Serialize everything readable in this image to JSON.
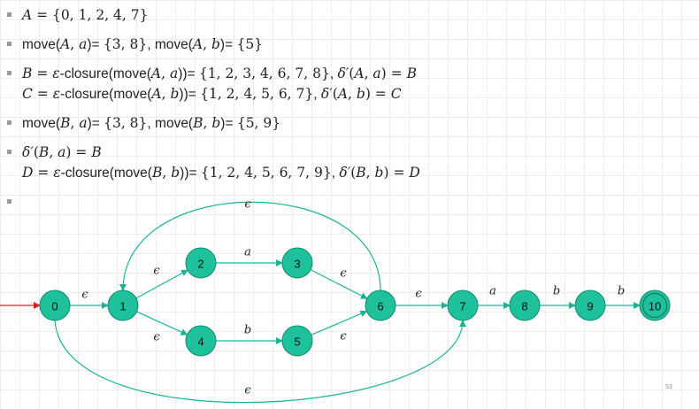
{
  "bullets": [
    {
      "lines": [
        [
          {
            "t": "m",
            "v": "A"
          },
          {
            "t": "n",
            "v": " = {0, 1, 2, 4, 7}"
          }
        ]
      ]
    },
    {
      "lines": [
        [
          {
            "t": "s",
            "v": "move("
          },
          {
            "t": "m",
            "v": "A"
          },
          {
            "t": "n",
            "v": ", "
          },
          {
            "t": "m",
            "v": "a"
          },
          {
            "t": "s",
            "v": ")= "
          },
          {
            "t": "n",
            "v": "{3, 8}"
          },
          {
            "t": "s",
            "v": ", move("
          },
          {
            "t": "m",
            "v": "A"
          },
          {
            "t": "n",
            "v": ", "
          },
          {
            "t": "m",
            "v": "b"
          },
          {
            "t": "s",
            "v": ")= "
          },
          {
            "t": "n",
            "v": "{5}"
          }
        ]
      ]
    },
    {
      "lines": [
        [
          {
            "t": "m",
            "v": "B"
          },
          {
            "t": "n",
            "v": " = "
          },
          {
            "t": "m",
            "v": "ε"
          },
          {
            "t": "s",
            "v": "-closure(move("
          },
          {
            "t": "m",
            "v": "A"
          },
          {
            "t": "n",
            "v": ", "
          },
          {
            "t": "m",
            "v": "a"
          },
          {
            "t": "s",
            "v": "))= "
          },
          {
            "t": "n",
            "v": "{1, 2, 3, 4, 6, 7, 8}"
          },
          {
            "t": "s",
            "v": ", "
          },
          {
            "t": "m",
            "v": "δ′"
          },
          {
            "t": "n",
            "v": "("
          },
          {
            "t": "m",
            "v": "A"
          },
          {
            "t": "n",
            "v": ", "
          },
          {
            "t": "m",
            "v": "a"
          },
          {
            "t": "n",
            "v": ") = "
          },
          {
            "t": "m",
            "v": "B"
          }
        ],
        [
          {
            "t": "m",
            "v": "C"
          },
          {
            "t": "n",
            "v": " = "
          },
          {
            "t": "m",
            "v": "ε"
          },
          {
            "t": "s",
            "v": "-closure(move("
          },
          {
            "t": "m",
            "v": "A"
          },
          {
            "t": "n",
            "v": ", "
          },
          {
            "t": "m",
            "v": "b"
          },
          {
            "t": "s",
            "v": "))= "
          },
          {
            "t": "n",
            "v": "{1, 2, 4, 5, 6, 7}"
          },
          {
            "t": "s",
            "v": ", "
          },
          {
            "t": "m",
            "v": "δ′"
          },
          {
            "t": "n",
            "v": "("
          },
          {
            "t": "m",
            "v": "A"
          },
          {
            "t": "n",
            "v": ", "
          },
          {
            "t": "m",
            "v": "b"
          },
          {
            "t": "n",
            "v": ") = "
          },
          {
            "t": "m",
            "v": "C"
          }
        ]
      ]
    },
    {
      "lines": [
        [
          {
            "t": "s",
            "v": "move("
          },
          {
            "t": "m",
            "v": "B"
          },
          {
            "t": "n",
            "v": ", "
          },
          {
            "t": "m",
            "v": "a"
          },
          {
            "t": "s",
            "v": ")= "
          },
          {
            "t": "n",
            "v": "{3, 8}"
          },
          {
            "t": "s",
            "v": ", move("
          },
          {
            "t": "m",
            "v": "B"
          },
          {
            "t": "n",
            "v": ", "
          },
          {
            "t": "m",
            "v": "b"
          },
          {
            "t": "s",
            "v": ")= "
          },
          {
            "t": "n",
            "v": "{5, 9}"
          }
        ]
      ]
    },
    {
      "lines": [
        [
          {
            "t": "m",
            "v": "δ′"
          },
          {
            "t": "n",
            "v": "("
          },
          {
            "t": "m",
            "v": "B"
          },
          {
            "t": "n",
            "v": ", "
          },
          {
            "t": "m",
            "v": "a"
          },
          {
            "t": "n",
            "v": ") = "
          },
          {
            "t": "m",
            "v": "B"
          }
        ],
        [
          {
            "t": "m",
            "v": "D"
          },
          {
            "t": "n",
            "v": " = "
          },
          {
            "t": "m",
            "v": "ε"
          },
          {
            "t": "s",
            "v": "-closure(move("
          },
          {
            "t": "m",
            "v": "B"
          },
          {
            "t": "n",
            "v": ", "
          },
          {
            "t": "m",
            "v": "b"
          },
          {
            "t": "s",
            "v": "))= "
          },
          {
            "t": "n",
            "v": "{1, 2, 4, 5, 6, 7, 9}"
          },
          {
            "t": "s",
            "v": ", "
          },
          {
            "t": "m",
            "v": "δ′"
          },
          {
            "t": "n",
            "v": "("
          },
          {
            "t": "m",
            "v": "B"
          },
          {
            "t": "n",
            "v": ", "
          },
          {
            "t": "m",
            "v": "b"
          },
          {
            "t": "n",
            "v": ") = "
          },
          {
            "t": "m",
            "v": "D"
          }
        ]
      ]
    },
    {
      "lines": [
        []
      ]
    }
  ],
  "diagram": {
    "node_color": "#1ec19b",
    "edge_color": "#1ab394",
    "start_arrow_color": "#e02020",
    "nodes": [
      "0",
      "1",
      "2",
      "3",
      "4",
      "5",
      "6",
      "7",
      "8",
      "9",
      "10"
    ],
    "accepting": [
      "10"
    ],
    "start": "0",
    "edges": [
      {
        "from": "0",
        "to": "1",
        "label": "ϵ"
      },
      {
        "from": "1",
        "to": "2",
        "label": "ϵ"
      },
      {
        "from": "1",
        "to": "4",
        "label": "ϵ"
      },
      {
        "from": "2",
        "to": "3",
        "label": "a"
      },
      {
        "from": "4",
        "to": "5",
        "label": "b"
      },
      {
        "from": "3",
        "to": "6",
        "label": "ϵ"
      },
      {
        "from": "5",
        "to": "6",
        "label": "ϵ"
      },
      {
        "from": "6",
        "to": "7",
        "label": "ϵ"
      },
      {
        "from": "7",
        "to": "8",
        "label": "a"
      },
      {
        "from": "8",
        "to": "9",
        "label": "b"
      },
      {
        "from": "9",
        "to": "10",
        "label": "b"
      },
      {
        "from": "6",
        "to": "1",
        "label": "ϵ"
      },
      {
        "from": "0",
        "to": "7",
        "label": "ϵ"
      }
    ]
  },
  "page_number": "53"
}
